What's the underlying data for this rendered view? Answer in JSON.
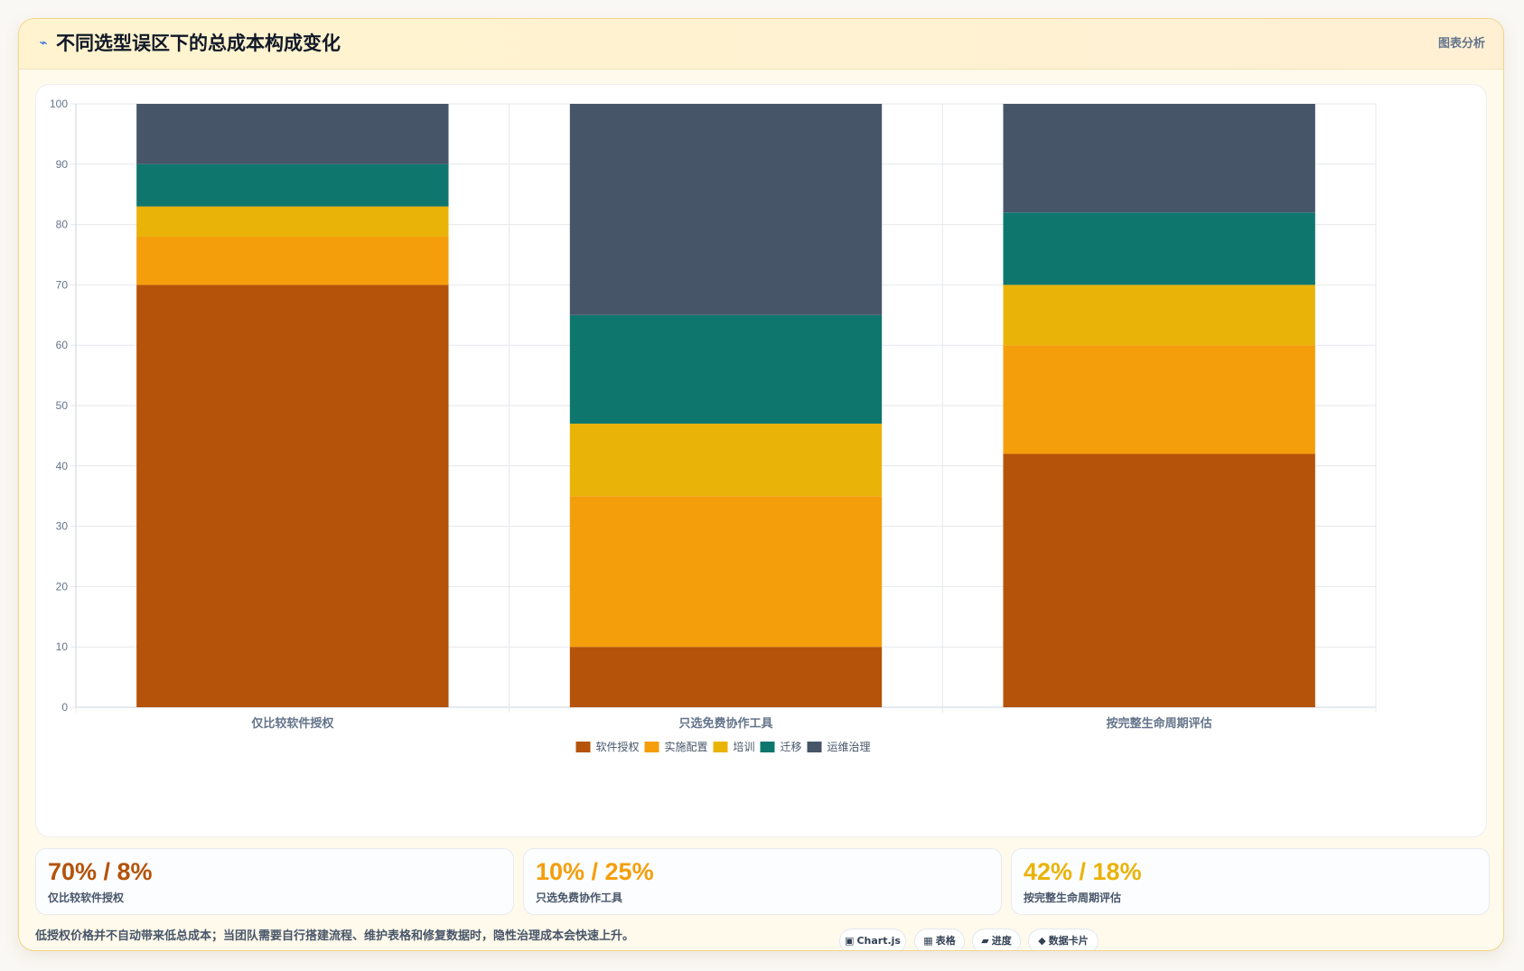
{
  "header": {
    "icon": "lightning-icon",
    "title": "不同选型误区下的总成本构成变化",
    "right_label": "图表分析"
  },
  "chart_data": {
    "type": "bar",
    "stacked": true,
    "categories": [
      "仅比较软件授权",
      "只选免费协作工具",
      "按完整生命周期评估"
    ],
    "series": [
      {
        "name": "软件授权",
        "color": "#b45309",
        "values": [
          70,
          10,
          42
        ]
      },
      {
        "name": "实施配置",
        "color": "#f59e0b",
        "values": [
          8,
          25,
          18
        ]
      },
      {
        "name": "培训",
        "color": "#eab308",
        "values": [
          5,
          12,
          10
        ]
      },
      {
        "name": "迁移",
        "color": "#0f766e",
        "values": [
          7,
          18,
          12
        ]
      },
      {
        "name": "运维治理",
        "color": "#475569",
        "values": [
          10,
          35,
          18
        ]
      }
    ],
    "ylim": [
      0,
      100
    ],
    "yticks": [
      0,
      10,
      20,
      30,
      40,
      50,
      60,
      70,
      80,
      90,
      100
    ],
    "grid": true,
    "legend_position": "bottom"
  },
  "stats": [
    {
      "value": "70% / 8%",
      "label": "仅比较软件授权",
      "color": "#b45309"
    },
    {
      "value": "10% / 25%",
      "label": "只选免费协作工具",
      "color": "#f59e0b"
    },
    {
      "value": "42% / 18%",
      "label": "按完整生命周期评估",
      "color": "#eab308"
    }
  ],
  "footnote": "低授权价格并不自动带来低总成本；当团队需要自行搭建流程、维护表格和修复数据时，隐性治理成本会快速上升。",
  "chips": [
    {
      "icon": "▣",
      "label": "Chart.js"
    },
    {
      "icon": "▦",
      "label": "表格"
    },
    {
      "icon": "▰",
      "label": "进度"
    },
    {
      "icon": "◆",
      "label": "数据卡片"
    }
  ]
}
